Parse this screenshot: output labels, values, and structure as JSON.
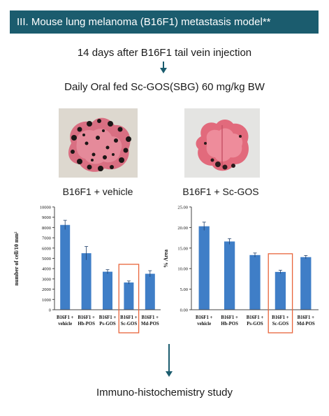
{
  "banner": {
    "title": "III. Mouse lung melanoma (B16F1) metastasis model**"
  },
  "steps": {
    "injection": "14 days after B16F1 tail vein injection",
    "treatment": "Daily Oral fed Sc-GOS(SBG) 60 mg/kg BW",
    "final": "Immuno-histochemistry study"
  },
  "photos": {
    "vehicle_caption": "B16F1 + vehicle",
    "scgos_caption": "B16F1 + Sc-GOS"
  },
  "colors": {
    "banner": "#1b5c6e",
    "bar": "#3f7ec7",
    "highlight": "#e8643a"
  },
  "chart_data": [
    {
      "type": "bar",
      "ylabel": "number of cell/10 mm²",
      "ylim": [
        0,
        10000
      ],
      "yticks": [
        "0",
        "1000",
        "2000",
        "3000",
        "4000",
        "5000",
        "6000",
        "7000",
        "8000",
        "9000",
        "10000"
      ],
      "categories": [
        [
          "B16F1 +",
          "vehicle"
        ],
        [
          "B16F1 +",
          "Hb-POS"
        ],
        [
          "B16F1 +",
          "Ps-GOS"
        ],
        [
          "B16F1 +",
          "Sc-GOS"
        ],
        [
          "B16F1 +",
          "Md-POS"
        ]
      ],
      "values": [
        8250,
        5500,
        3700,
        2650,
        3500
      ],
      "errors": [
        450,
        650,
        200,
        150,
        300
      ],
      "highlight_index": 3
    },
    {
      "type": "bar",
      "ylabel": "% Area",
      "ylim": [
        0,
        25
      ],
      "yticks": [
        "0.00",
        "5.00",
        "10.00",
        "15.00",
        "20.00",
        "25.00"
      ],
      "categories": [
        [
          "B16F1 +",
          "vehicle"
        ],
        [
          "B16F1 +",
          "Hb-POS"
        ],
        [
          "B16F1 +",
          "Ps-GOS"
        ],
        [
          "B16F1 +",
          "Sc-GOS"
        ],
        [
          "B16F1 +",
          "Md-POS"
        ]
      ],
      "values": [
        20.3,
        16.6,
        13.3,
        9.2,
        12.8
      ],
      "errors": [
        1.0,
        0.7,
        0.5,
        0.4,
        0.4
      ],
      "highlight_index": 3
    }
  ]
}
